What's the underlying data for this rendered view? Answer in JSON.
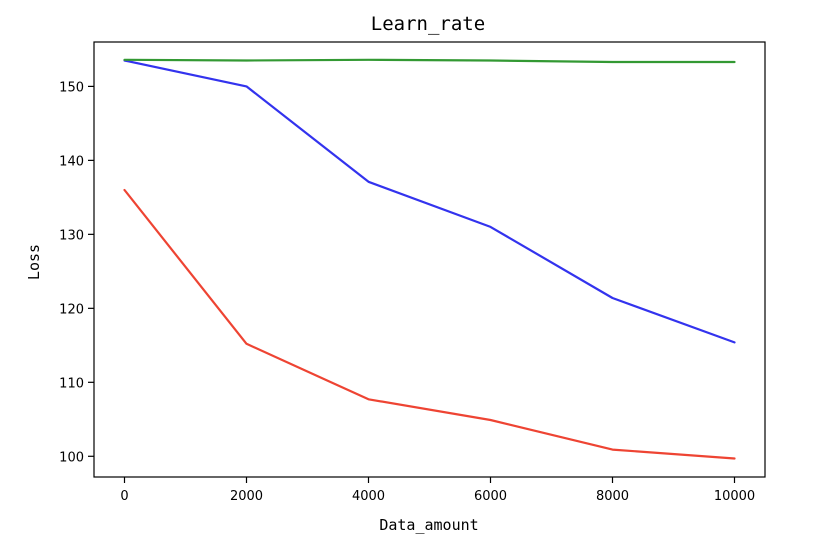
{
  "chart_data": {
    "type": "line",
    "title": "Learn_rate",
    "xlabel": "Data_amount",
    "ylabel": "Loss",
    "x": [
      0,
      2000,
      4000,
      6000,
      8000,
      10000
    ],
    "xticks": [
      0,
      2000,
      4000,
      6000,
      8000,
      10000
    ],
    "yticks": [
      100,
      110,
      120,
      130,
      140,
      150
    ],
    "xlim": [
      -500,
      10500
    ],
    "ylim": [
      97.2,
      156.0
    ],
    "grid": false,
    "series": [
      {
        "color": "#3333ee",
        "values": [
          153.5,
          150.0,
          137.1,
          131.0,
          121.4,
          115.4
        ]
      },
      {
        "color": "#ee4433",
        "values": [
          136.0,
          115.2,
          107.7,
          104.9,
          100.9,
          99.7
        ]
      },
      {
        "color": "#339933",
        "values": [
          153.6,
          153.5,
          153.6,
          153.5,
          153.3,
          153.3
        ]
      }
    ]
  }
}
